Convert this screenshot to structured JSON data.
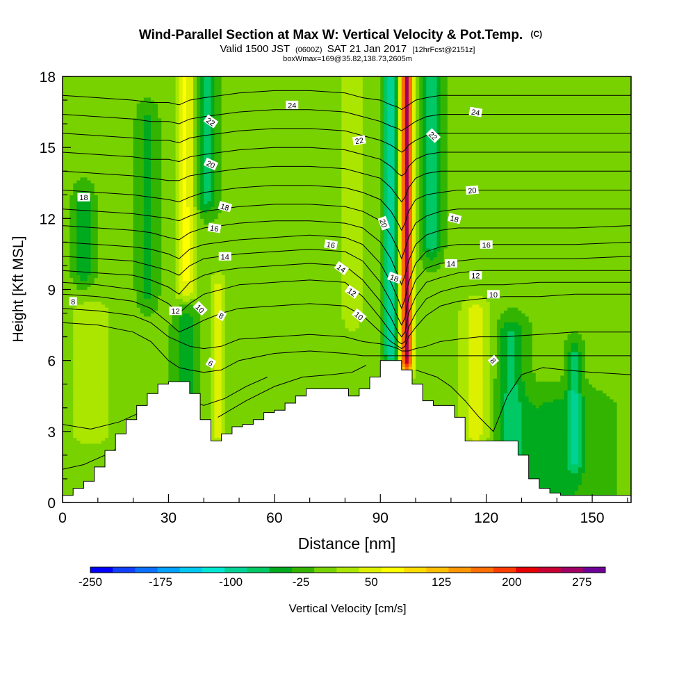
{
  "chart_data": {
    "type": "heatmap",
    "title": "Wind-Parallel Section at Max W: Vertical Velocity & Pot.Temp.",
    "title_mark": "(C)",
    "subtitle": {
      "pre": "Valid 1500 JST",
      "utc": "(0600Z)",
      "date": "SAT 21 Jan 2017",
      "fcst": "[12hrFcst@2151z]"
    },
    "subtitle2": "boxWmax=169@35.82,138.73,2605m",
    "xlabel": "Distance [nm]",
    "ylabel": "Height [Kft MSL]",
    "xlim": [
      0,
      161
    ],
    "ylim": [
      0,
      18
    ],
    "x_ticks": [
      0,
      30,
      60,
      90,
      120,
      150
    ],
    "y_ticks": [
      0,
      3,
      6,
      9,
      12,
      15,
      18
    ],
    "colorbar": {
      "label": "Vertical Velocity [cm/s]",
      "tick_labels": [
        "-250",
        "-175",
        "-100",
        "-25",
        "50",
        "125",
        "200",
        "275"
      ],
      "tick_values": [
        -250,
        -175,
        -100,
        -25,
        50,
        125,
        200,
        275
      ],
      "levels": [
        -250,
        -225,
        -200,
        -175,
        -150,
        -125,
        -100,
        -75,
        -50,
        -25,
        0,
        25,
        50,
        75,
        100,
        125,
        150,
        175,
        200,
        225,
        250,
        275,
        300
      ],
      "colors": [
        "#0000ff",
        "#0f3fff",
        "#0a70ff",
        "#00a0ff",
        "#00c8f0",
        "#00e6d2",
        "#00d296",
        "#00c864",
        "#00aa1e",
        "#33b400",
        "#78d200",
        "#aae600",
        "#dcf000",
        "#ffff00",
        "#ffdc00",
        "#ffbe00",
        "#ff9600",
        "#ff6e00",
        "#ff3c00",
        "#e60000",
        "#c80032",
        "#a00064",
        "#6e0096"
      ]
    },
    "terrain_profile": {
      "x": [
        0,
        3,
        6,
        9,
        12,
        15,
        18,
        21,
        24,
        27,
        30,
        33,
        36,
        39,
        42,
        45,
        48,
        51,
        54,
        57,
        60,
        63,
        66,
        69,
        72,
        75,
        78,
        81,
        84,
        87,
        90,
        93,
        96,
        99,
        102,
        105,
        108,
        111,
        114,
        117,
        120,
        123,
        126,
        129,
        132,
        135,
        138,
        141,
        144,
        147,
        150,
        153,
        156,
        159,
        161
      ],
      "y": [
        0.3,
        0.6,
        0.9,
        1.5,
        2.2,
        2.9,
        3.5,
        4.1,
        4.6,
        5.0,
        5.1,
        5.1,
        4.6,
        3.5,
        2.6,
        2.9,
        3.2,
        3.3,
        3.5,
        3.8,
        3.9,
        4.2,
        4.5,
        4.8,
        4.8,
        4.8,
        4.8,
        4.5,
        4.8,
        5.3,
        6.0,
        6.0,
        5.6,
        5.0,
        4.3,
        4.1,
        4.1,
        3.6,
        2.6,
        2.6,
        2.6,
        2.6,
        2.6,
        2.0,
        1.0,
        0.6,
        0.4,
        0.3,
        0.3,
        0.3,
        0.3,
        0.3,
        0.3,
        0.3,
        0.3
      ]
    },
    "w_features": [
      {
        "x": 97.5,
        "y0": 6.2,
        "y1": 18,
        "amp": 275,
        "sx": 1.7
      },
      {
        "x": 93.0,
        "y0": 6.5,
        "y1": 18,
        "amp": -110,
        "sx": 1.9
      },
      {
        "x": 104.5,
        "y0": 11.0,
        "y1": 18,
        "amp": -70,
        "sx": 2.5
      },
      {
        "x": 35.0,
        "y0": 9.0,
        "y1": 18,
        "amp": 75,
        "sx": 3.0
      },
      {
        "x": 40.5,
        "y0": 13.0,
        "y1": 18,
        "amp": -70,
        "sx": 3.0
      },
      {
        "x": 44.0,
        "y0": 3.0,
        "y1": 9.0,
        "amp": 50,
        "sx": 2.5
      },
      {
        "x": 35.0,
        "y0": 3.5,
        "y1": 8.0,
        "amp": -50,
        "sx": 3.0
      },
      {
        "x": 82.0,
        "y0": 8.0,
        "y1": 18,
        "amp": 45,
        "sx": 3.0
      },
      {
        "x": 117.0,
        "y0": 3.0,
        "y1": 8.0,
        "amp": 55,
        "sx": 4.5
      },
      {
        "x": 127.0,
        "y0": 0.5,
        "y1": 7.0,
        "amp": -60,
        "sx": 4.0
      },
      {
        "x": 145.0,
        "y0": 2.0,
        "y1": 6.0,
        "amp": -70,
        "sx": 2.0
      },
      {
        "x": 6.0,
        "y0": 10.0,
        "y1": 12.5,
        "amp": -55,
        "sx": 2.5
      },
      {
        "x": 24.0,
        "y0": 9.0,
        "y1": 16.0,
        "amp": -40,
        "sx": 2.5
      },
      {
        "x": 140.0,
        "y0": 0.3,
        "y1": 4.0,
        "amp": -35,
        "sx": 12.0
      },
      {
        "x": 8.0,
        "y0": 3.0,
        "y1": 8.0,
        "amp": 30,
        "sx": 8.0
      }
    ],
    "pot_temp_contours": {
      "x": [
        0,
        10,
        20,
        25,
        30,
        33,
        36,
        40,
        45,
        50,
        60,
        70,
        80,
        85,
        90,
        93,
        95,
        96,
        97,
        98,
        100,
        103,
        107,
        112,
        118,
        125,
        135,
        145,
        161
      ],
      "lines": [
        {
          "y": [
            7.6,
            7.5,
            7.2,
            6.8,
            6.0,
            5.7,
            5.6,
            5.5,
            5.6,
            6.0,
            6.3,
            6.4,
            6.3,
            6.2,
            6.2,
            6.2,
            6.2,
            6.2,
            6.2,
            6.2,
            6.2,
            6.2,
            6.2,
            6.2,
            6.2,
            6.2,
            6.2,
            6.2,
            6.2
          ]
        },
        {
          "y": [
            8.2,
            8.1,
            7.9,
            7.6,
            7.0,
            6.8,
            6.6,
            6.5,
            6.6,
            6.9,
            7.0,
            7.1,
            7.0,
            6.8,
            6.7,
            6.6,
            6.5,
            6.4,
            6.4,
            6.4,
            6.5,
            6.6,
            6.8,
            6.9,
            7.0,
            7.0,
            7.1,
            7.2,
            7.2
          ]
        },
        {
          "y": [
            8.8,
            8.7,
            8.5,
            8.2,
            7.6,
            7.2,
            7.4,
            7.7,
            8.0,
            8.2,
            8.3,
            8.4,
            8.3,
            7.9,
            7.2,
            6.8,
            6.6,
            6.5,
            6.6,
            7.0,
            7.4,
            7.9,
            8.3,
            8.5,
            8.6,
            8.7,
            8.7,
            8.8,
            8.8
          ]
        },
        {
          "y": [
            9.3,
            9.2,
            9.0,
            8.8,
            8.4,
            8.0,
            8.4,
            8.8,
            9.0,
            9.2,
            9.3,
            9.4,
            9.3,
            8.7,
            7.8,
            7.2,
            6.8,
            6.7,
            6.8,
            7.4,
            8.0,
            8.6,
            8.9,
            9.1,
            9.2,
            9.2,
            9.3,
            9.3,
            9.3
          ]
        },
        {
          "y": [
            9.8,
            9.7,
            9.6,
            9.4,
            9.1,
            8.8,
            9.3,
            9.6,
            9.8,
            9.9,
            10.0,
            10.1,
            10.0,
            9.4,
            8.5,
            7.8,
            7.2,
            7.0,
            7.2,
            8.0,
            8.7,
            9.3,
            9.5,
            9.7,
            9.8,
            9.8,
            9.8,
            9.8,
            9.8
          ]
        },
        {
          "y": [
            10.4,
            10.3,
            10.2,
            10.0,
            9.8,
            9.6,
            10.0,
            10.3,
            10.4,
            10.5,
            10.6,
            10.7,
            10.6,
            10.2,
            9.3,
            8.5,
            7.8,
            7.5,
            7.8,
            8.6,
            9.4,
            9.9,
            10.1,
            10.2,
            10.3,
            10.3,
            10.3,
            10.3,
            10.4
          ]
        },
        {
          "y": [
            11.0,
            10.9,
            10.8,
            10.7,
            10.5,
            10.3,
            10.7,
            10.9,
            11.0,
            11.1,
            11.2,
            11.3,
            11.2,
            10.9,
            10.1,
            9.3,
            8.6,
            8.2,
            8.6,
            9.3,
            10.1,
            10.6,
            10.8,
            10.9,
            10.9,
            10.9,
            10.9,
            10.9,
            11.0
          ]
        },
        {
          "y": [
            11.7,
            11.6,
            11.5,
            11.4,
            11.2,
            11.1,
            11.4,
            11.6,
            11.7,
            11.8,
            11.9,
            11.9,
            11.8,
            11.6,
            11.0,
            10.3,
            9.6,
            9.2,
            9.6,
            10.2,
            10.9,
            11.3,
            11.5,
            11.6,
            11.6,
            11.6,
            11.6,
            11.6,
            11.7
          ]
        },
        {
          "y": [
            12.4,
            12.3,
            12.2,
            12.1,
            12.0,
            11.9,
            12.1,
            12.3,
            12.4,
            12.5,
            12.6,
            12.6,
            12.5,
            12.3,
            11.9,
            11.3,
            10.7,
            10.3,
            10.7,
            11.2,
            11.8,
            12.1,
            12.3,
            12.4,
            12.4,
            12.4,
            12.4,
            12.4,
            12.4
          ]
        },
        {
          "y": [
            13.2,
            13.1,
            13.0,
            12.9,
            12.8,
            12.7,
            12.9,
            13.1,
            13.2,
            13.3,
            13.4,
            13.4,
            13.3,
            13.1,
            12.8,
            12.3,
            11.8,
            11.5,
            11.8,
            12.3,
            12.8,
            13.0,
            13.1,
            13.2,
            13.2,
            13.2,
            13.2,
            13.2,
            13.2
          ]
        },
        {
          "y": [
            14.0,
            13.9,
            13.8,
            13.7,
            13.6,
            13.6,
            13.8,
            13.9,
            14.0,
            14.1,
            14.2,
            14.2,
            14.1,
            13.9,
            13.7,
            13.3,
            12.9,
            12.7,
            12.9,
            13.3,
            13.7,
            13.9,
            14.0,
            14.0,
            14.0,
            14.0,
            14.0,
            14.0,
            14.0
          ]
        },
        {
          "y": [
            14.8,
            14.7,
            14.6,
            14.5,
            14.5,
            14.4,
            14.6,
            14.7,
            14.8,
            14.9,
            15.0,
            15.0,
            14.9,
            14.7,
            14.5,
            14.2,
            13.9,
            13.8,
            13.9,
            14.2,
            14.5,
            14.7,
            14.8,
            14.8,
            14.8,
            14.8,
            14.8,
            14.8,
            14.8
          ]
        },
        {
          "y": [
            15.6,
            15.5,
            15.4,
            15.3,
            15.3,
            15.2,
            15.4,
            15.5,
            15.6,
            15.7,
            15.8,
            15.8,
            15.7,
            15.5,
            15.3,
            15.1,
            14.9,
            14.8,
            14.9,
            15.1,
            15.3,
            15.5,
            15.6,
            15.6,
            15.6,
            15.6,
            15.6,
            15.6,
            15.6
          ]
        },
        {
          "y": [
            16.4,
            16.3,
            16.2,
            16.1,
            16.1,
            16.0,
            16.2,
            16.3,
            16.4,
            16.5,
            16.6,
            16.6,
            16.5,
            16.3,
            16.1,
            15.9,
            15.8,
            15.7,
            15.8,
            15.9,
            16.1,
            16.3,
            16.4,
            16.4,
            16.4,
            16.4,
            16.4,
            16.4,
            16.4
          ]
        },
        {
          "y": [
            17.2,
            17.1,
            17.0,
            16.9,
            16.9,
            16.8,
            17.0,
            17.1,
            17.2,
            17.3,
            17.4,
            17.4,
            17.3,
            17.1,
            17.0,
            16.8,
            16.7,
            16.6,
            16.7,
            16.8,
            17.0,
            17.1,
            17.2,
            17.2,
            17.2,
            17.2,
            17.2,
            17.2,
            17.2
          ]
        }
      ],
      "low_lines": [
        {
          "x": [
            0,
            8,
            16,
            22,
            28,
            34,
            40,
            46,
            52,
            58
          ],
          "y": [
            3.3,
            3.1,
            3.4,
            3.8,
            4.2,
            4.4,
            4.1,
            4.4,
            4.9,
            5.3
          ]
        },
        {
          "x": [
            0,
            6,
            12,
            18,
            24,
            30
          ],
          "y": [
            1.4,
            1.6,
            2.0,
            2.5,
            3.3,
            4.2
          ]
        },
        {
          "x": [
            44,
            52,
            60,
            68,
            76,
            82,
            86
          ],
          "y": [
            3.6,
            4.3,
            4.9,
            5.3,
            5.4,
            5.5,
            5.8
          ]
        },
        {
          "x": [
            100,
            106,
            110,
            114,
            118,
            122,
            126,
            130,
            136,
            142,
            150,
            161
          ],
          "y": [
            5.6,
            5.3,
            4.9,
            4.3,
            3.6,
            3.0,
            4.5,
            5.4,
            5.7,
            5.6,
            5.5,
            5.4
          ]
        }
      ]
    },
    "contour_labels": [
      {
        "text": "24",
        "x": 65,
        "y": 16.8,
        "angle": 0
      },
      {
        "text": "22",
        "x": 42,
        "y": 16.1,
        "angle": 35
      },
      {
        "text": "22",
        "x": 84,
        "y": 15.3,
        "angle": -10
      },
      {
        "text": "24",
        "x": 117,
        "y": 16.5,
        "angle": 10
      },
      {
        "text": "22",
        "x": 105,
        "y": 15.5,
        "angle": 45
      },
      {
        "text": "20",
        "x": 42,
        "y": 14.3,
        "angle": 25
      },
      {
        "text": "20",
        "x": 116,
        "y": 13.2,
        "angle": -5
      },
      {
        "text": "18",
        "x": 6,
        "y": 12.9,
        "angle": 0
      },
      {
        "text": "18",
        "x": 46,
        "y": 12.5,
        "angle": 15
      },
      {
        "text": "18",
        "x": 111,
        "y": 12.0,
        "angle": 15
      },
      {
        "text": "20",
        "x": 91,
        "y": 11.8,
        "angle": 70
      },
      {
        "text": "16",
        "x": 43,
        "y": 11.6,
        "angle": 10
      },
      {
        "text": "16",
        "x": 76,
        "y": 10.9,
        "angle": 10
      },
      {
        "text": "16",
        "x": 120,
        "y": 10.9,
        "angle": 0
      },
      {
        "text": "14",
        "x": 46,
        "y": 10.4,
        "angle": 0
      },
      {
        "text": "14",
        "x": 79,
        "y": 9.9,
        "angle": 35
      },
      {
        "text": "14",
        "x": 110,
        "y": 10.1,
        "angle": 0
      },
      {
        "text": "18",
        "x": 94,
        "y": 9.5,
        "angle": 20
      },
      {
        "text": "12",
        "x": 117,
        "y": 9.6,
        "angle": 0
      },
      {
        "text": "12",
        "x": 82,
        "y": 8.9,
        "angle": 35
      },
      {
        "text": "10",
        "x": 122,
        "y": 8.8,
        "angle": 0
      },
      {
        "text": "8",
        "x": 3,
        "y": 8.5,
        "angle": 0
      },
      {
        "text": "12",
        "x": 32,
        "y": 8.1,
        "angle": 0
      },
      {
        "text": "10",
        "x": 39,
        "y": 8.2,
        "angle": 45
      },
      {
        "text": "8",
        "x": 45,
        "y": 7.9,
        "angle": 30
      },
      {
        "text": "10",
        "x": 84,
        "y": 7.9,
        "angle": 40
      },
      {
        "text": "6",
        "x": 42,
        "y": 5.9,
        "angle": 30
      },
      {
        "text": "8",
        "x": 122,
        "y": 6.0,
        "angle": 50
      }
    ]
  }
}
